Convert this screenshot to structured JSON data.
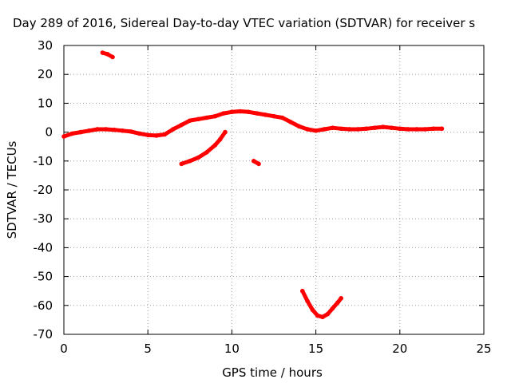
{
  "chart_data": {
    "type": "scatter",
    "title": "Day 289 of 2016, Sidereal Day-to-day VTEC variation (SDTVAR) for receiver s",
    "xlabel": "GPS time / hours",
    "ylabel": "SDTVAR / TECUs",
    "xlim": [
      0,
      25
    ],
    "ylim": [
      -70,
      30
    ],
    "xticks": [
      0,
      5,
      10,
      15,
      20,
      25
    ],
    "yticks": [
      30,
      20,
      10,
      0,
      -10,
      -20,
      -30,
      -40,
      -50,
      -60,
      -70
    ],
    "grid": true,
    "color": "#ff0000",
    "series": [
      {
        "name": "main-track",
        "x": [
          0.0,
          0.5,
          1.0,
          1.5,
          2.0,
          2.5,
          3.0,
          3.5,
          4.0,
          4.5,
          5.0,
          5.5,
          6.0,
          6.5,
          7.0,
          7.5,
          8.0,
          8.5,
          9.0,
          9.5,
          10.0,
          10.5,
          11.0,
          11.5,
          12.0,
          12.5,
          13.0,
          13.5,
          14.0,
          14.5,
          15.0,
          15.5,
          16.0,
          16.5,
          17.0,
          17.5,
          18.0,
          18.5,
          19.0,
          19.5,
          20.0,
          20.5,
          21.0,
          21.5,
          22.0,
          22.5
        ],
        "y": [
          -1.5,
          -0.5,
          0.0,
          0.5,
          1.0,
          1.0,
          0.8,
          0.5,
          0.2,
          -0.5,
          -1.0,
          -1.2,
          -0.8,
          1.0,
          2.5,
          4.0,
          4.5,
          5.0,
          5.5,
          6.5,
          7.0,
          7.2,
          7.0,
          6.5,
          6.0,
          5.5,
          5.0,
          3.5,
          2.0,
          1.0,
          0.5,
          1.0,
          1.5,
          1.2,
          1.0,
          1.0,
          1.2,
          1.5,
          1.8,
          1.5,
          1.2,
          1.0,
          1.0,
          1.0,
          1.2,
          1.2
        ]
      },
      {
        "name": "cluster-upper",
        "x": [
          2.3,
          2.6,
          2.9
        ],
        "y": [
          27.5,
          27.0,
          26.0
        ]
      },
      {
        "name": "rising-arc",
        "x": [
          7.0,
          7.5,
          8.0,
          8.5,
          9.0,
          9.3,
          9.6
        ],
        "y": [
          -11.0,
          -10.0,
          -8.8,
          -7.0,
          -4.5,
          -2.5,
          0.0
        ]
      },
      {
        "name": "cluster-mid",
        "x": [
          11.3,
          11.6
        ],
        "y": [
          -10.0,
          -11.0
        ]
      },
      {
        "name": "u-curve",
        "x": [
          14.2,
          14.5,
          14.8,
          15.1,
          15.4,
          15.7,
          16.0,
          16.3,
          16.5
        ],
        "y": [
          -55.0,
          -58.5,
          -61.5,
          -63.5,
          -64.0,
          -63.0,
          -61.0,
          -59.0,
          -57.5
        ]
      }
    ]
  }
}
